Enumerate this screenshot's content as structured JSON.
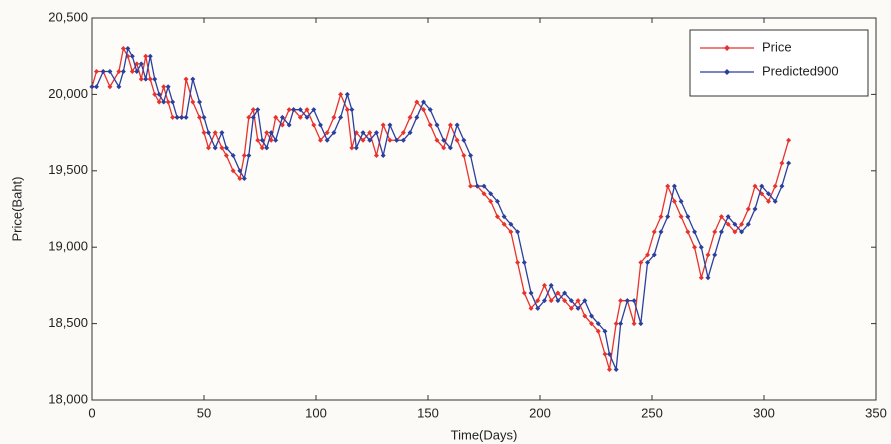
{
  "chart_data": {
    "type": "line",
    "x_label": "Time(Days)",
    "y_label": "Price(Baht)",
    "x": [
      0,
      2,
      5,
      8,
      12,
      14,
      16,
      18,
      20,
      22,
      24,
      26,
      28,
      30,
      32,
      34,
      36,
      38,
      40,
      42,
      45,
      48,
      50,
      52,
      55,
      58,
      60,
      63,
      66,
      68,
      70,
      72,
      74,
      76,
      78,
      80,
      82,
      85,
      88,
      90,
      93,
      96,
      99,
      102,
      105,
      108,
      111,
      114,
      116,
      118,
      121,
      124,
      127,
      130,
      133,
      136,
      139,
      142,
      145,
      148,
      151,
      154,
      157,
      160,
      163,
      166,
      169,
      172,
      175,
      178,
      181,
      184,
      187,
      190,
      193,
      196,
      199,
      202,
      205,
      208,
      211,
      214,
      217,
      220,
      223,
      226,
      229,
      231,
      234,
      236,
      239,
      242,
      245,
      248,
      251,
      254,
      257,
      260,
      263,
      266,
      269,
      272,
      275,
      278,
      281,
      284,
      287,
      290,
      293,
      296,
      299,
      302,
      305,
      308,
      311
    ],
    "series": [
      {
        "name": "Price",
        "color": "#e8322d",
        "values": [
          20050,
          20150,
          20150,
          20050,
          20150,
          20300,
          20250,
          20150,
          20200,
          20100,
          20250,
          20100,
          20000,
          19950,
          20050,
          19950,
          19850,
          19850,
          19850,
          20100,
          19950,
          19850,
          19750,
          19650,
          19750,
          19650,
          19600,
          19500,
          19450,
          19600,
          19850,
          19900,
          19700,
          19650,
          19750,
          19700,
          19850,
          19800,
          19900,
          19900,
          19850,
          19900,
          19800,
          19700,
          19750,
          19850,
          20000,
          19900,
          19650,
          19750,
          19700,
          19750,
          19600,
          19800,
          19700,
          19700,
          19750,
          19850,
          19950,
          19900,
          19800,
          19700,
          19650,
          19800,
          19700,
          19600,
          19400,
          19400,
          19350,
          19300,
          19200,
          19150,
          19100,
          18900,
          18700,
          18600,
          18650,
          18750,
          18650,
          18700,
          18650,
          18600,
          18650,
          18550,
          18500,
          18450,
          18300,
          18200,
          18500,
          18650,
          18650,
          18500,
          18900,
          18950,
          19100,
          19200,
          19400,
          19300,
          19200,
          19100,
          19000,
          18800,
          18950,
          19100,
          19200,
          19150,
          19100,
          19150,
          19250,
          19400,
          19350,
          19300,
          19400,
          19550,
          19700
        ]
      },
      {
        "name": "Predicted900",
        "color": "#2b3f9e",
        "values": [
          20050,
          20050,
          20150,
          20150,
          20050,
          20150,
          20300,
          20250,
          20150,
          20200,
          20100,
          20250,
          20100,
          20000,
          19950,
          20050,
          19950,
          19850,
          19850,
          19850,
          20100,
          19950,
          19850,
          19750,
          19650,
          19750,
          19650,
          19600,
          19500,
          19450,
          19600,
          19850,
          19900,
          19700,
          19650,
          19750,
          19700,
          19850,
          19800,
          19900,
          19900,
          19850,
          19900,
          19800,
          19700,
          19750,
          19850,
          20000,
          19900,
          19650,
          19750,
          19700,
          19750,
          19600,
          19800,
          19700,
          19700,
          19750,
          19850,
          19950,
          19900,
          19800,
          19700,
          19650,
          19800,
          19700,
          19600,
          19400,
          19400,
          19350,
          19300,
          19200,
          19150,
          19100,
          18900,
          18700,
          18600,
          18650,
          18750,
          18650,
          18700,
          18650,
          18600,
          18650,
          18550,
          18500,
          18450,
          18300,
          18200,
          18500,
          18650,
          18650,
          18500,
          18900,
          18950,
          19100,
          19200,
          19400,
          19300,
          19200,
          19100,
          19000,
          18800,
          18950,
          19100,
          19200,
          19150,
          19100,
          19150,
          19250,
          19400,
          19350,
          19300,
          19400,
          19550
        ]
      }
    ],
    "xlim": [
      0,
      350
    ],
    "xticks": [
      0,
      50,
      100,
      150,
      200,
      250,
      300,
      350
    ],
    "ylim": [
      18000,
      20500
    ],
    "yticks": [
      {
        "value": 18000,
        "label": "18,000"
      },
      {
        "value": 18500,
        "label": "18,500"
      },
      {
        "value": 19000,
        "label": "19,000"
      },
      {
        "value": 19500,
        "label": "19,500"
      },
      {
        "value": 20000,
        "label": "20,000"
      },
      {
        "value": 20500,
        "label": "20,500"
      }
    ],
    "legend": "upper right",
    "grid": false
  }
}
